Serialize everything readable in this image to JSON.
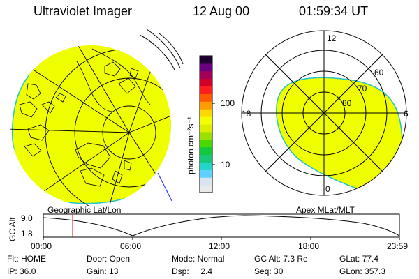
{
  "header": {
    "instrument": "Ultraviolet Imager",
    "date": "12 Aug 00",
    "time": "01:59:34 UT"
  },
  "colorbar": {
    "unit_label": "photon cm⁻²s⁻¹",
    "scale": "log",
    "ticks": [
      "100",
      "10"
    ],
    "colors": [
      "#e9e9e9",
      "#d8e4ee",
      "#5fd0ff",
      "#1fd6c8",
      "#17c77a",
      "#14c83d",
      "#4ad800",
      "#9be000",
      "#dcee00",
      "#f2ff00",
      "#ffd700",
      "#ff9c00",
      "#ff5a00",
      "#ff1e1e",
      "#d10028",
      "#a3005a",
      "#6a0080",
      "#1e0030"
    ]
  },
  "left_map": {
    "caption": "Geographic Lat/Lon",
    "fill_color": "#f0ff00"
  },
  "right_map": {
    "caption": "Apex MLat/MLT",
    "fill_color": "#f0ff00",
    "mlt_labels": {
      "top": "12",
      "left": "18",
      "right": "6",
      "bottom": "0"
    },
    "lat_labels": [
      "60",
      "70",
      "80"
    ]
  },
  "altitude_plot": {
    "ylabel": "GC Alt",
    "y_ticks": [
      "9.0",
      "1.8"
    ],
    "x_ticks": [
      "00:00",
      "06:00",
      "12:00",
      "18:00",
      "23:59"
    ],
    "marker_time": "01:59:34",
    "marker_color": "#ff0000"
  },
  "info": {
    "flt": "Flt: HOME",
    "door": "Door: Open",
    "mode": "Mode: Normal",
    "gc_alt": "GC Alt: 7.3 Re",
    "glat": "GLat:  77.4",
    "ip": "IP: 36.0",
    "gain": "Gain: 13",
    "dsp": "Dsp:     2.4",
    "seq": "Seq: 30",
    "glon": "GLon: 357.3"
  }
}
